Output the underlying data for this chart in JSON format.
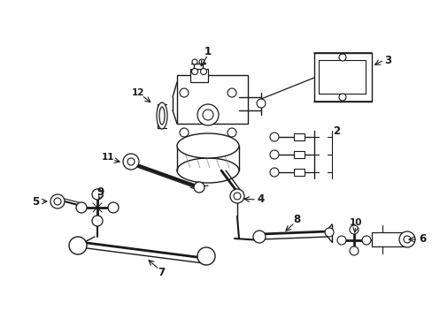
{
  "bg_color": "#ffffff",
  "line_color": "#1a1a1a",
  "figsize": [
    4.89,
    3.6
  ],
  "dpi": 100,
  "lw": 0.9,
  "label_fs": 8.5,
  "label_fs_small": 7.5
}
